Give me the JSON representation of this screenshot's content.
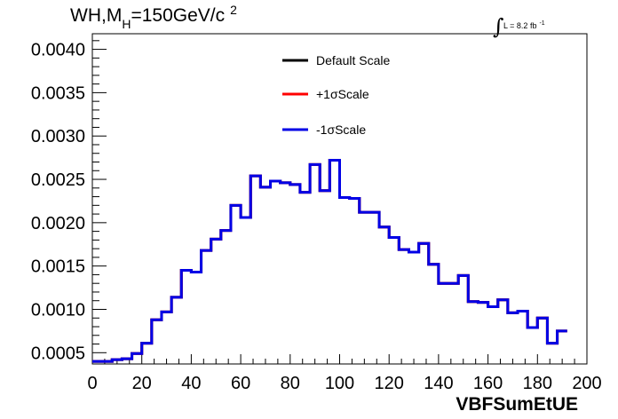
{
  "chart_data": {
    "type": "line",
    "title": {
      "prefix": "WH,M",
      "subscript": "H",
      "main": "=150GeV/c",
      "superscript": "2"
    },
    "luminosity": {
      "integral": "∫",
      "text": "L = 8.2 fb",
      "superscript": "-1"
    },
    "xlabel": "VBFSumEtUE",
    "ylabel": "",
    "xlim": [
      0,
      200
    ],
    "ylim": [
      0.00037,
      0.00418
    ],
    "xticks": [
      0,
      20,
      40,
      60,
      80,
      100,
      120,
      140,
      160,
      180,
      200
    ],
    "xtick_labels": [
      "0",
      "20",
      "40",
      "60",
      "80",
      "100",
      "120",
      "140",
      "160",
      "180",
      "200"
    ],
    "yticks": [
      0.0005,
      0.001,
      0.0015,
      0.002,
      0.0025,
      0.003,
      0.0035,
      0.004
    ],
    "ytick_labels": [
      "0.0005",
      "0.0010",
      "0.0015",
      "0.0020",
      "0.0025",
      "0.0030",
      "0.0035",
      "0.0040"
    ],
    "grid": false,
    "legend_position": "top-center",
    "bin_width": 4,
    "bin_edges_start": 0,
    "series": [
      {
        "name": "Default Scale",
        "color": "#000000",
        "visible_in_plot": false,
        "values": [
          0.0004,
          0.0004,
          0.00042,
          0.00043,
          0.00049,
          0.00061,
          0.00088,
          0.00097,
          0.00114,
          0.00145,
          0.00143,
          0.00168,
          0.00181,
          0.00191,
          0.0022,
          0.00206,
          0.00254,
          0.00241,
          0.00248,
          0.00246,
          0.00244,
          0.00235,
          0.00267,
          0.00237,
          0.00272,
          0.00229,
          0.00228,
          0.00212,
          0.00212,
          0.00195,
          0.00183,
          0.00169,
          0.00166,
          0.00176,
          0.00152,
          0.0013,
          0.0013,
          0.00139,
          0.00109,
          0.00108,
          0.00103,
          0.00111,
          0.00096,
          0.00098,
          0.00079,
          0.0009,
          0.00061,
          0.00075
        ]
      },
      {
        "name": "+1σScale",
        "color": "#ff0000",
        "visible_in_plot": false,
        "values": [
          0.0004,
          0.0004,
          0.00042,
          0.00043,
          0.00049,
          0.00061,
          0.00088,
          0.00097,
          0.00114,
          0.00145,
          0.00143,
          0.00168,
          0.00181,
          0.00191,
          0.0022,
          0.00206,
          0.00254,
          0.00241,
          0.00248,
          0.00246,
          0.00244,
          0.00235,
          0.00267,
          0.00237,
          0.00272,
          0.00229,
          0.00228,
          0.00212,
          0.00212,
          0.00195,
          0.00183,
          0.00169,
          0.00166,
          0.00176,
          0.00152,
          0.0013,
          0.0013,
          0.00139,
          0.00109,
          0.00108,
          0.00103,
          0.00111,
          0.00096,
          0.00098,
          0.00079,
          0.0009,
          0.00061,
          0.00075
        ]
      },
      {
        "name": "-1σScale",
        "color": "#0000e6",
        "visible_in_plot": true,
        "values": [
          0.0004,
          0.0004,
          0.00042,
          0.00043,
          0.00049,
          0.00061,
          0.00088,
          0.00097,
          0.00114,
          0.00145,
          0.00143,
          0.00168,
          0.00181,
          0.00191,
          0.0022,
          0.00206,
          0.00254,
          0.00241,
          0.00248,
          0.00246,
          0.00244,
          0.00235,
          0.00267,
          0.00237,
          0.00272,
          0.00229,
          0.00228,
          0.00212,
          0.00212,
          0.00195,
          0.00183,
          0.00169,
          0.00166,
          0.00176,
          0.00152,
          0.0013,
          0.0013,
          0.00139,
          0.00109,
          0.00108,
          0.00103,
          0.00111,
          0.00096,
          0.00098,
          0.00079,
          0.0009,
          0.00061,
          0.00075
        ]
      }
    ]
  }
}
